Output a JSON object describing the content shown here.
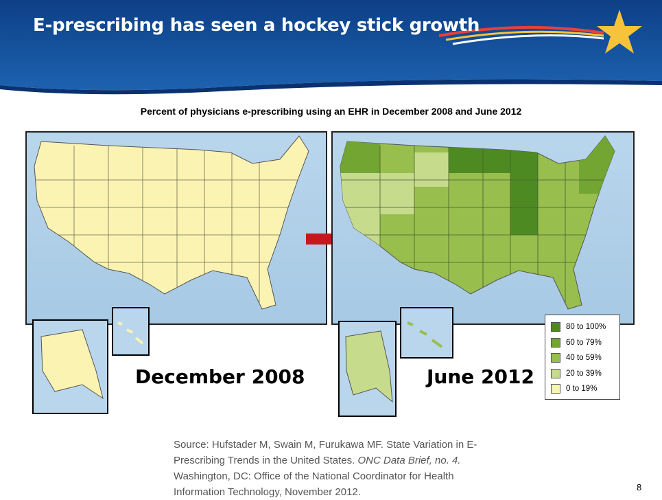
{
  "header": {
    "title": "E-prescribing has seen a hockey stick growth"
  },
  "subtitle": "Percent of physicians e-prescribing using an EHR in December 2008 and June 2012",
  "maps": [
    {
      "label": "December 2008"
    },
    {
      "label": "June 2012"
    }
  ],
  "legend": [
    {
      "label": "80 to 100%",
      "color": "#4e8a22"
    },
    {
      "label": "60 to 79%",
      "color": "#72a532"
    },
    {
      "label": "40 to 59%",
      "color": "#98be4e"
    },
    {
      "label": "20 to 39%",
      "color": "#c6db8c"
    },
    {
      "label": "0 to 19%",
      "color": "#f7f5b6"
    }
  ],
  "source": {
    "text_before": "Source: Hufstader M, Swain M, Furukawa MF. State Variation in E-Prescribing Trends in the United States.",
    "italic": "ONC Data Brief, no. 4.",
    "text_after": "Washington, DC: Office of the National Coordinator for Health Information Technology, November 2012."
  },
  "page_number": "8"
}
